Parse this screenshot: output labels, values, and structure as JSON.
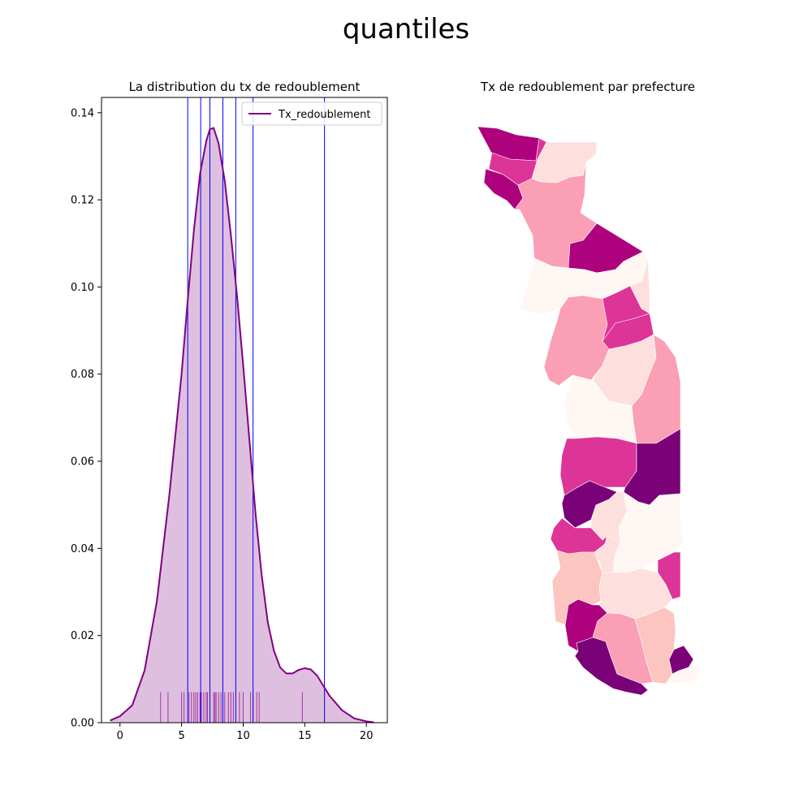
{
  "figure": {
    "suptitle": "quantiles"
  },
  "chart_data": [
    {
      "type": "area",
      "title": "La distribution du tx de redoublement",
      "xlabel": "",
      "ylabel": "",
      "xlim": [
        -1.5,
        21.7
      ],
      "ylim": [
        0,
        0.1435
      ],
      "xticks": [
        0,
        5,
        10,
        15,
        20
      ],
      "yticks": [
        0.0,
        0.02,
        0.04,
        0.06,
        0.08,
        0.1,
        0.12,
        0.14
      ],
      "ytick_labels": [
        "0.00",
        "0.02",
        "0.04",
        "0.06",
        "0.08",
        "0.10",
        "0.12",
        "0.14"
      ],
      "legend": {
        "placement": "top-right",
        "entries": [
          "Tx_redoublement"
        ]
      },
      "series": [
        {
          "name": "Tx_redoublement",
          "color": "#800080",
          "fill": "#dfbfe0",
          "x": [
            -0.8,
            0,
            1,
            2,
            3,
            4,
            5,
            5.5,
            6,
            6.5,
            7,
            7.3,
            7.6,
            8,
            8.5,
            9,
            9.5,
            10,
            10.5,
            11,
            11.5,
            12,
            12.5,
            13,
            13.5,
            14,
            14.5,
            15,
            15.5,
            16,
            16.5,
            17,
            18,
            19,
            20,
            20.6
          ],
          "y": [
            0.0005,
            0.0015,
            0.004,
            0.012,
            0.028,
            0.052,
            0.08,
            0.097,
            0.113,
            0.126,
            0.1335,
            0.1362,
            0.1365,
            0.133,
            0.1245,
            0.112,
            0.098,
            0.082,
            0.065,
            0.048,
            0.034,
            0.023,
            0.0165,
            0.0127,
            0.0113,
            0.0113,
            0.0121,
            0.0125,
            0.0122,
            0.0108,
            0.0085,
            0.0062,
            0.0029,
            0.001,
            0.0003,
            0.0001
          ]
        }
      ],
      "quantile_lines": {
        "color": "#0000ff",
        "x": [
          5.5,
          6.55,
          7.3,
          8.35,
          9.4,
          10.8,
          16.6
        ]
      },
      "rug": {
        "color": "#800080",
        "height": 0.007,
        "x": [
          3.3,
          3.9,
          5.0,
          5.2,
          5.6,
          5.8,
          6.0,
          6.15,
          6.3,
          6.5,
          6.6,
          6.8,
          7.0,
          7.1,
          7.3,
          7.6,
          7.7,
          7.8,
          8.0,
          8.2,
          8.5,
          8.8,
          9.0,
          9.2,
          9.7,
          10.0,
          10.6,
          10.8,
          11.1,
          11.3,
          14.8
        ]
      }
    },
    {
      "type": "choropleth",
      "title": "Tx de redoublement par prefecture",
      "palette": [
        "#fff7f3",
        "#fde0dd",
        "#fcc5c0",
        "#fa9fb5",
        "#f768a1",
        "#dd3497",
        "#ae017e",
        "#7a0177"
      ]
    }
  ]
}
